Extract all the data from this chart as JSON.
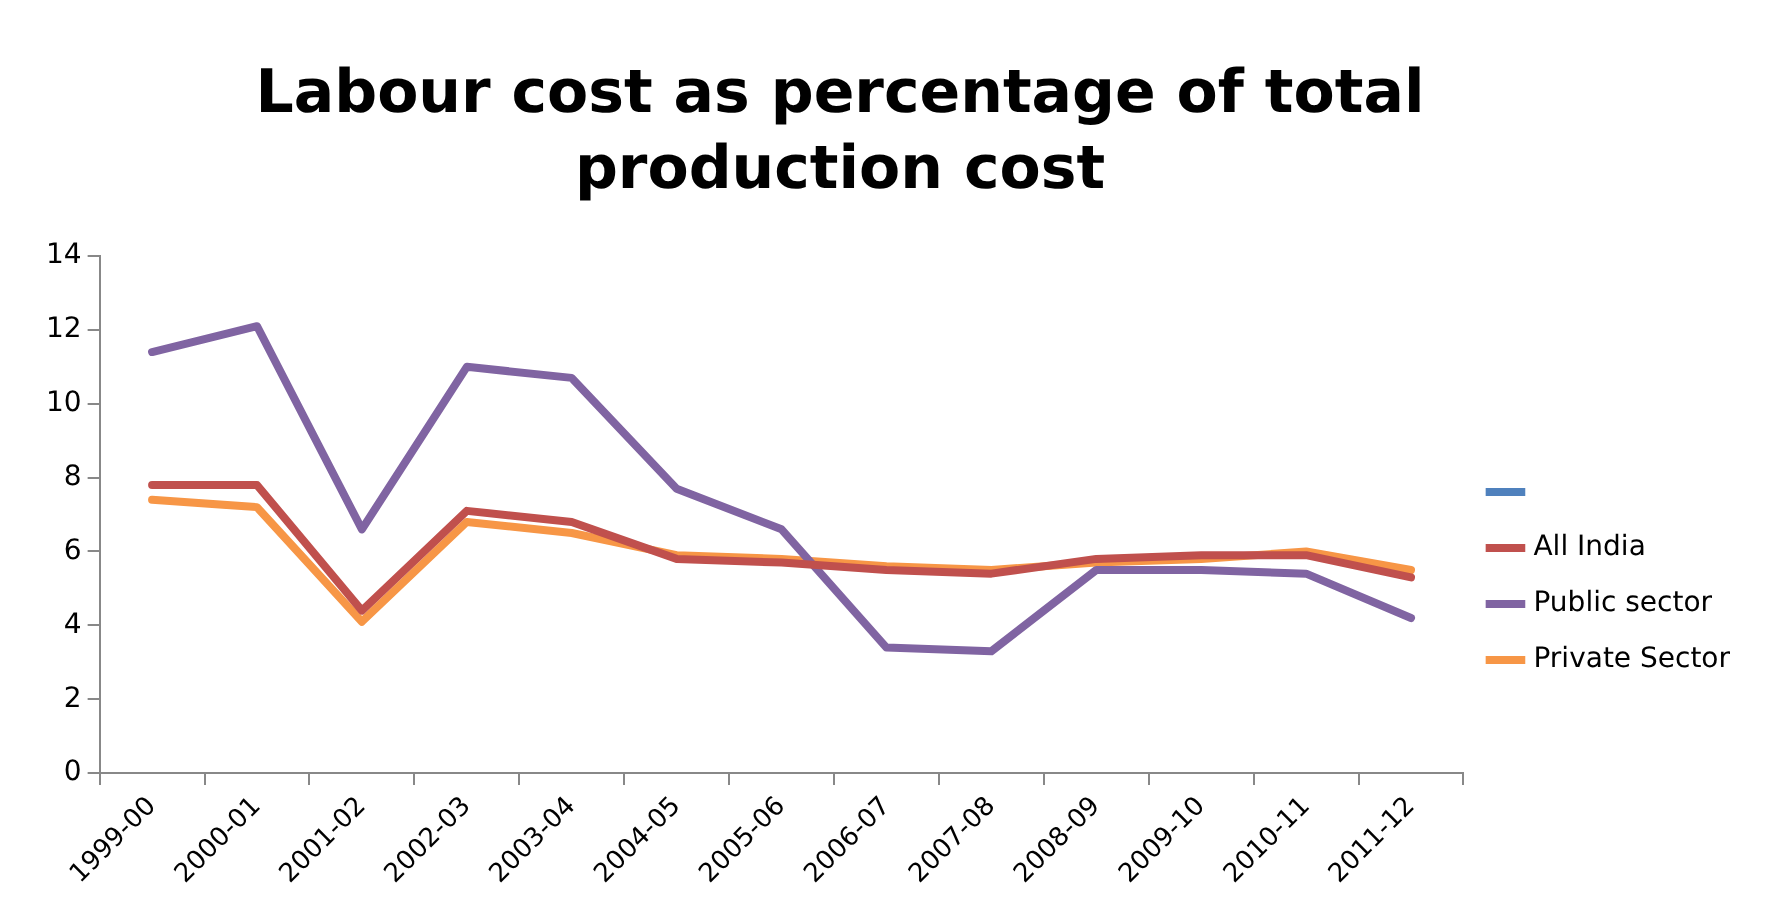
{
  "chart_data": {
    "type": "line",
    "title": "Labour cost as percentage of total production cost",
    "categories": [
      "1999-00",
      "2000-01",
      "2001-02",
      "2002-03",
      "2003-04",
      "2004-05",
      "2005-06",
      "2006-07",
      "2007-08",
      "2008-09",
      "2009-10",
      "2010-11",
      "2011-12"
    ],
    "series": [
      {
        "color": "#4f81bd",
        "values": [
          null,
          null,
          null,
          null,
          null,
          null,
          null,
          null,
          null,
          null,
          null,
          null,
          null
        ]
      },
      {
        "name": "All India",
        "color": "#c0504d",
        "values": [
          7.8,
          7.8,
          4.4,
          7.1,
          6.8,
          5.8,
          5.7,
          5.5,
          5.4,
          5.8,
          5.9,
          5.9,
          5.3
        ]
      },
      {
        "name": "Public sector",
        "color": "#8064a2",
        "values": [
          11.4,
          12.1,
          6.6,
          11.0,
          10.7,
          7.7,
          6.6,
          3.4,
          3.3,
          5.5,
          5.5,
          5.4,
          4.2
        ]
      },
      {
        "name": "Private Sector",
        "color": "#f79646",
        "values": [
          7.4,
          7.2,
          4.1,
          6.8,
          6.5,
          5.9,
          5.8,
          5.6,
          5.5,
          5.7,
          5.8,
          6.0,
          5.5
        ]
      }
    ],
    "ylim": [
      0,
      14
    ],
    "yticks": [
      0,
      2,
      4,
      6,
      8,
      10,
      12,
      14
    ],
    "grid": false,
    "legend": "right",
    "marker": "none",
    "line_style": "solid"
  }
}
